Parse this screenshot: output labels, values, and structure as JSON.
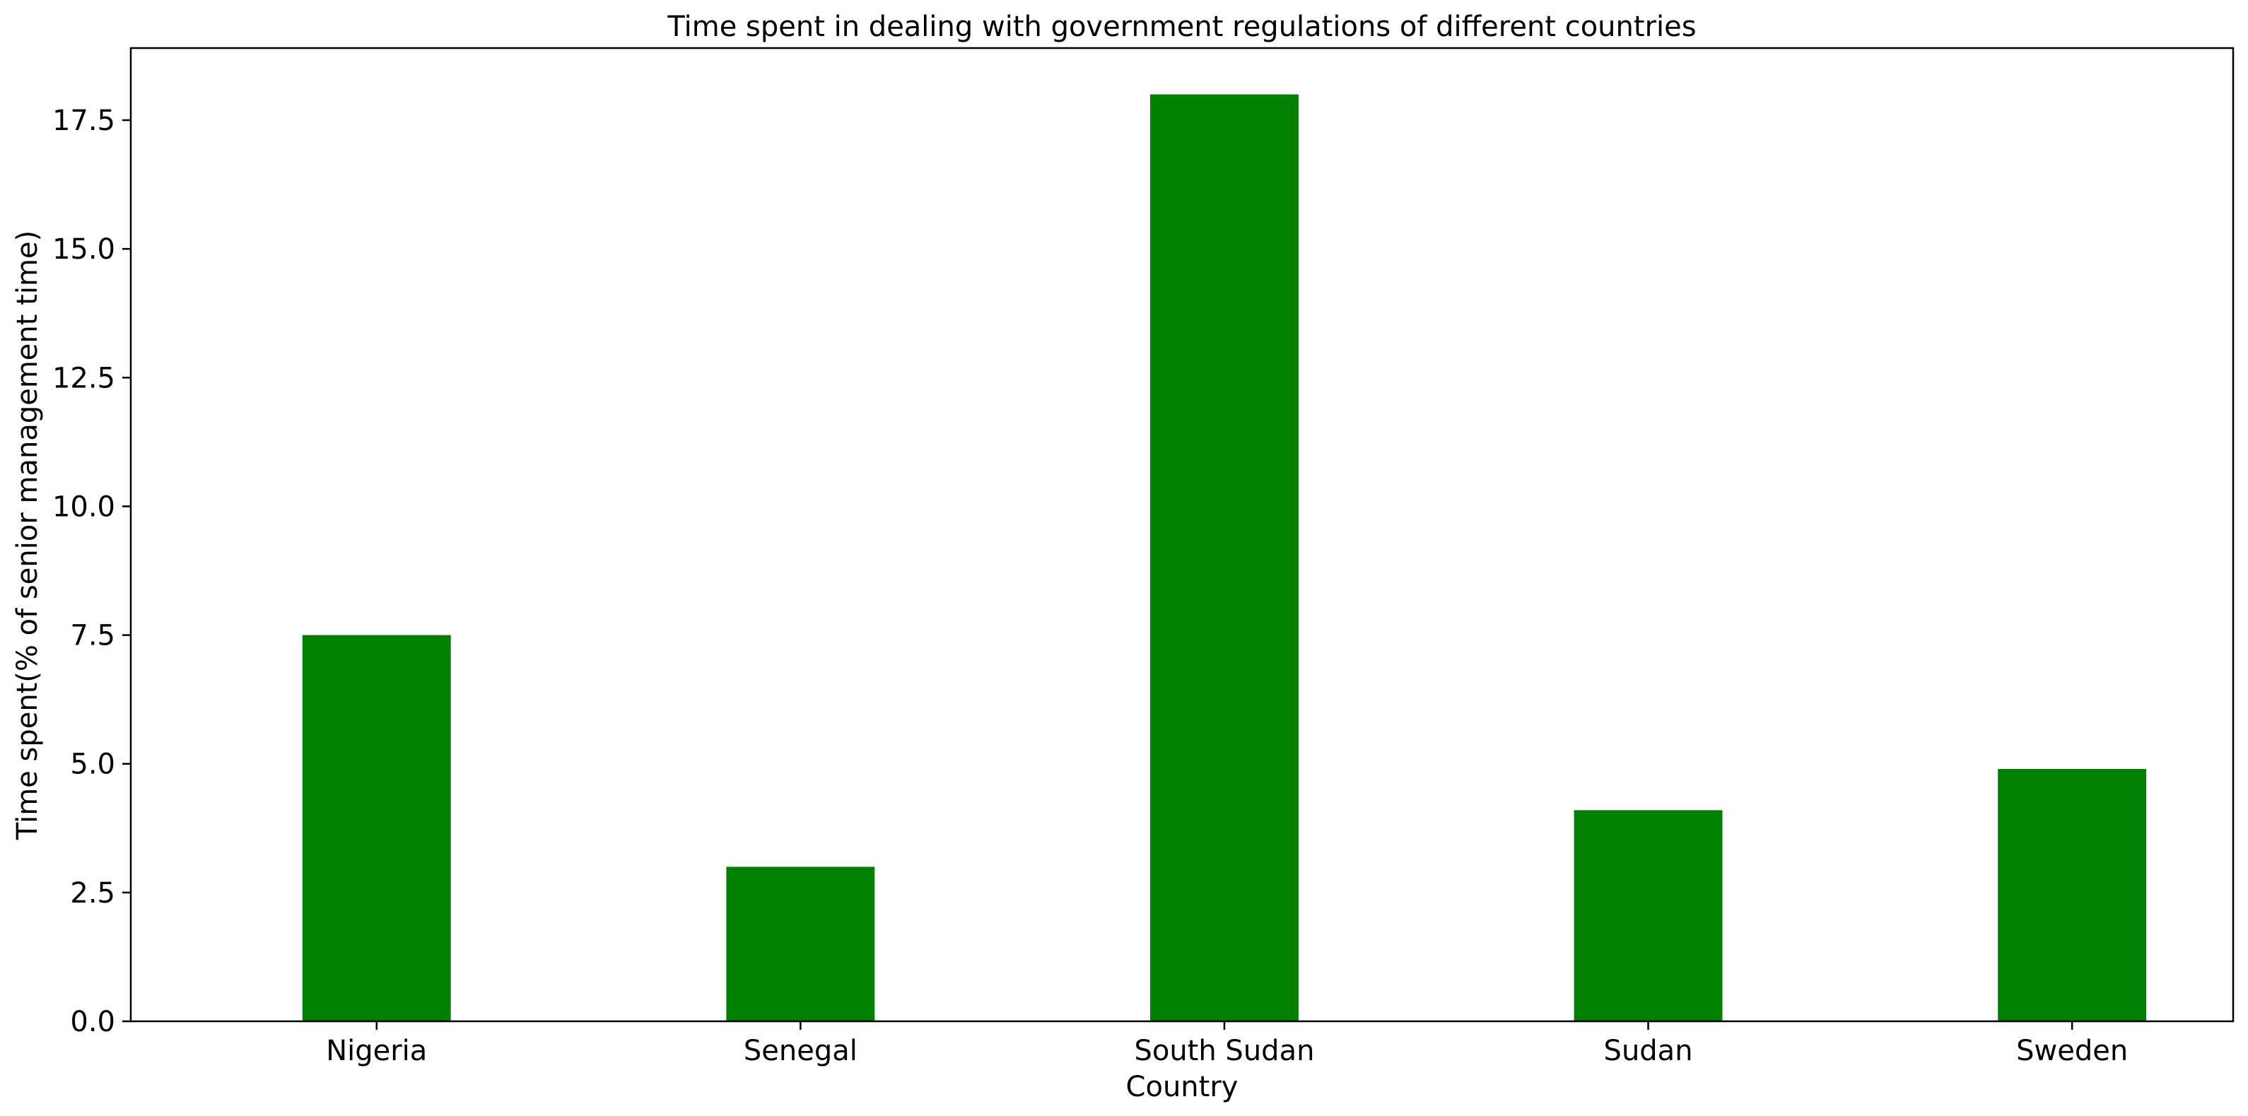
{
  "chart_data": {
    "type": "bar",
    "title": "Time spent in dealing with government regulations of different countries",
    "xlabel": "Country",
    "ylabel": "Time spent(% of senior management time)",
    "categories": [
      "Nigeria",
      "Senegal",
      "South Sudan",
      "Sudan",
      "Sweden"
    ],
    "values": [
      7.5,
      3.0,
      18.0,
      4.1,
      4.9
    ],
    "ylim": [
      0,
      18.9
    ],
    "yticks": [
      0.0,
      2.5,
      5.0,
      7.5,
      10.0,
      12.5,
      15.0,
      17.5
    ],
    "ytick_labels": [
      "0.0",
      "2.5",
      "5.0",
      "7.5",
      "10.0",
      "12.5",
      "15.0",
      "17.5"
    ],
    "bar_color": "#008000",
    "grid": false,
    "legend": "none"
  }
}
